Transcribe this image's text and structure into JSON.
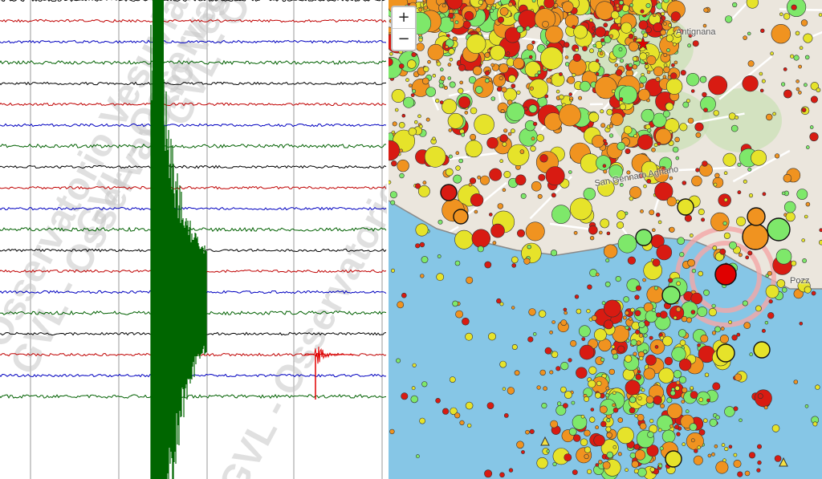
{
  "watermark": {
    "text": "GVL - Osservatorio Vesuviano",
    "color": "#c8c8c8"
  },
  "map": {
    "zoom_in_label": "+",
    "zoom_out_label": "−",
    "place_labels": [
      "Antignana",
      "San Gennaro Agnano",
      "Pozz"
    ]
  },
  "seismogram": {
    "channel_colors": [
      "#c00000",
      "#0000c0",
      "#006000",
      "#000000"
    ],
    "event_trace_color": "#006600"
  },
  "colors": {
    "sea": "#86c6e6",
    "land": "#ebe6dd",
    "park": "#c9dfb4",
    "quake_red": "#d81b12",
    "quake_orange": "#f09320",
    "quake_yellow": "#e6e32a",
    "quake_green": "#7ee86a",
    "latest_event": "#e00000"
  }
}
